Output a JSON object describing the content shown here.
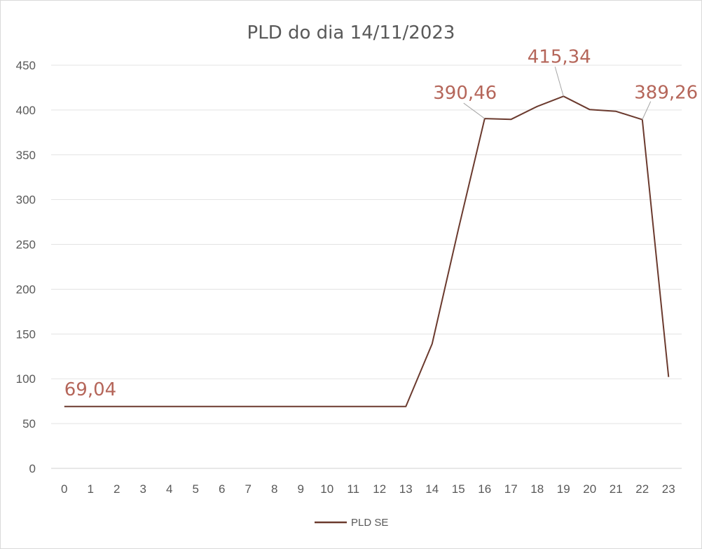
{
  "chart_data": {
    "type": "line",
    "title": "PLD do dia 14/11/2023",
    "xlabel": "",
    "ylabel": "",
    "categories": [
      "0",
      "1",
      "2",
      "3",
      "4",
      "5",
      "6",
      "7",
      "8",
      "9",
      "10",
      "11",
      "12",
      "13",
      "14",
      "15",
      "16",
      "17",
      "18",
      "19",
      "20",
      "21",
      "22",
      "23"
    ],
    "series": [
      {
        "name": "PLD SE",
        "color": "#6b3a2e",
        "values": [
          69.04,
          69.04,
          69.04,
          69.04,
          69.04,
          69.04,
          69.04,
          69.04,
          69.04,
          69.04,
          69.04,
          69.04,
          69.04,
          69.04,
          139,
          267,
          390.46,
          389.5,
          404,
          415.34,
          400.5,
          398.5,
          389.26,
          102
        ]
      }
    ],
    "ylim": [
      0,
      450
    ],
    "yticks": [
      0,
      50,
      100,
      150,
      200,
      250,
      300,
      350,
      400,
      450
    ],
    "grid": true,
    "legend_position": "bottom",
    "data_labels": [
      {
        "index": 0,
        "text": "69,04"
      },
      {
        "index": 16,
        "text": "390,46"
      },
      {
        "index": 19,
        "text": "415,34"
      },
      {
        "index": 22,
        "text": "389,26"
      }
    ],
    "data_label_color": "#b5665a",
    "gridline_color": "#e3e3e3",
    "leader_line_color": "#a6a6a6"
  }
}
